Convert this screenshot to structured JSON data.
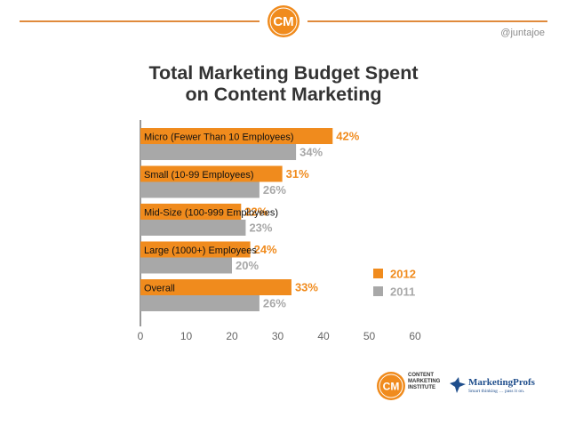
{
  "header": {
    "badge_text": "CM",
    "handle": "@juntajoe"
  },
  "chart_data": {
    "type": "bar",
    "title_lines": [
      "Total Marketing Budget Spent",
      "on Content Marketing"
    ],
    "categories": [
      "Micro (Fewer Than 10 Employees)",
      "Small (10-99 Employees)",
      "Mid-Size (100-999 Employees)",
      "Large (1000+) Employees",
      "Overall"
    ],
    "series": [
      {
        "name": "2012",
        "color": "#f08b1d",
        "values": [
          42,
          31,
          22,
          24,
          33
        ],
        "labels": [
          "42%",
          "31%",
          "22%",
          "24%",
          "33%"
        ]
      },
      {
        "name": "2011",
        "color": "#a8a8a8",
        "values": [
          34,
          26,
          23,
          20,
          26
        ],
        "labels": [
          "34%",
          "26%",
          "23%",
          "20%",
          "26%"
        ]
      }
    ],
    "xlim": [
      0,
      60
    ],
    "xticks": [
      "0",
      "10",
      "20",
      "30",
      "40",
      "50",
      "60"
    ],
    "orientation": "horizontal",
    "legend": "bottom-right",
    "grid": false
  },
  "footer": {
    "cmi_badge": "CM",
    "cmi_lines": [
      "CONTENT",
      "MARKETING",
      "INSTITUTE"
    ],
    "mp_name": "MarketingProfs",
    "mp_tagline": "Smart thinking … pass it on."
  }
}
